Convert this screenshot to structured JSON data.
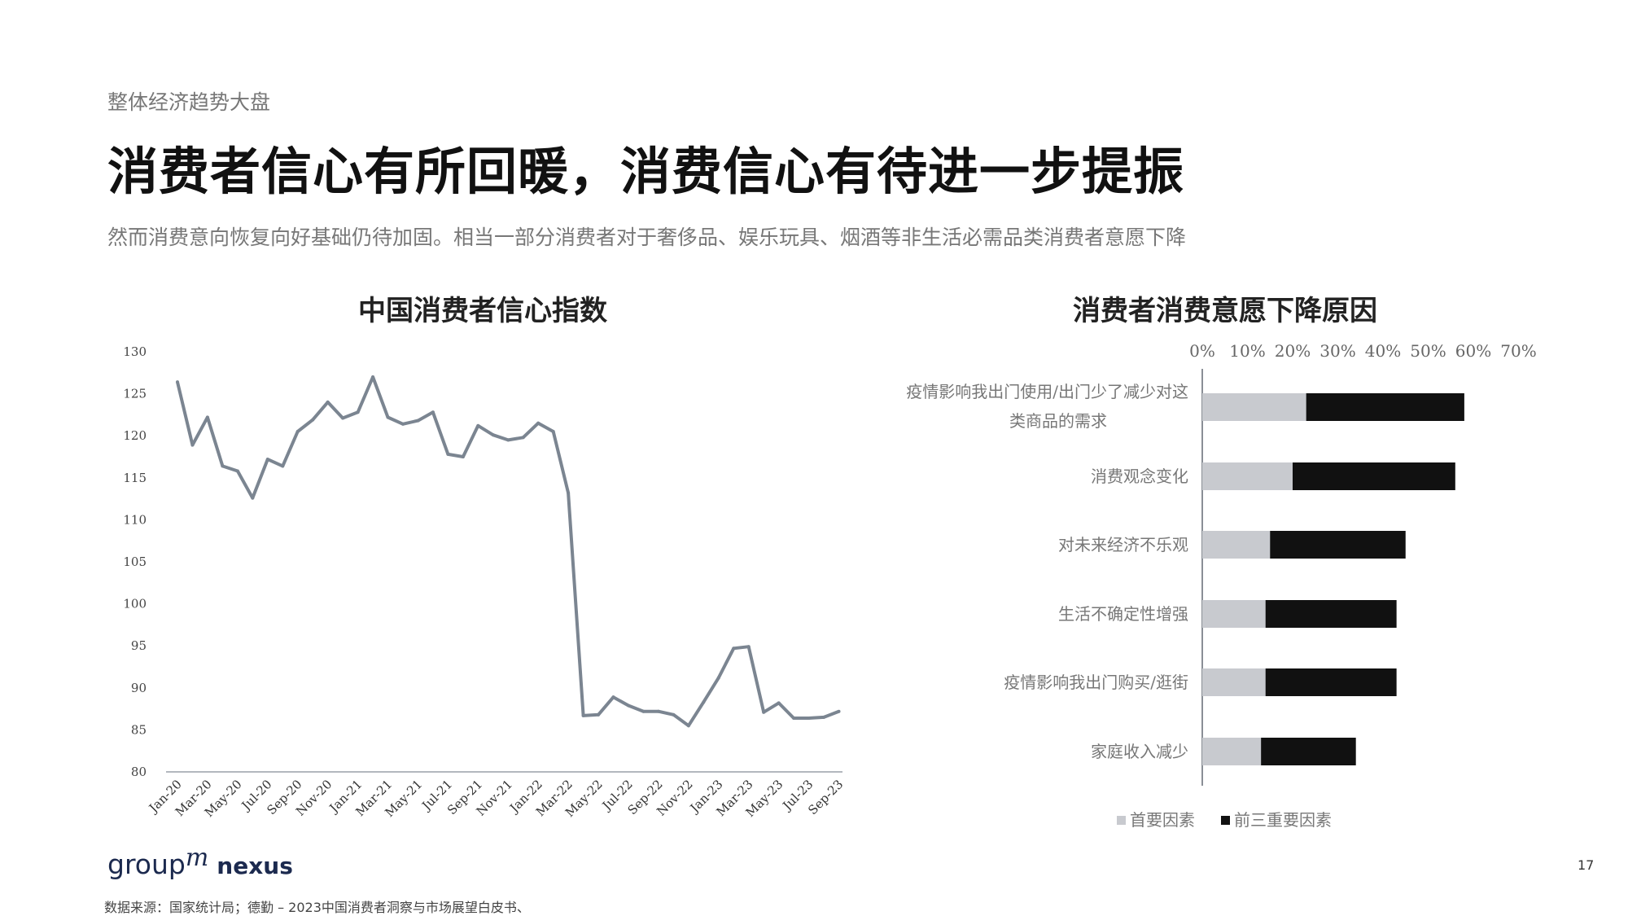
{
  "header": {
    "section_label": "整体经济趋势大盘",
    "title": "消费者信心有所回暖，消费信心有待进一步提振",
    "subtitle": "然而消费意向恢复向好基础仍待加固。相当一部分消费者对于奢侈品、娱乐玩具、烟酒等非生活必需品类消费者意愿下降"
  },
  "footer": {
    "logo_group": "group",
    "logo_m": "m",
    "logo_nexus": "nexus",
    "page_number": "17",
    "source": "数据来源：国家统计局；德勤 – 2023中国消费者洞察与市场展望白皮书、"
  },
  "chart_data": [
    {
      "type": "line",
      "title": "中国消费者信心指数",
      "xlabel": "",
      "ylabel": "",
      "ylim": [
        80,
        130
      ],
      "yticks": [
        80,
        85,
        90,
        95,
        100,
        105,
        110,
        115,
        120,
        125,
        130
      ],
      "xtick_labels": [
        "Jan-20",
        "Mar-20",
        "May-20",
        "Jul-20",
        "Sep-20",
        "Nov-20",
        "Jan-21",
        "Mar-21",
        "May-21",
        "Jul-21",
        "Sep-21",
        "Nov-21",
        "Jan-22",
        "Mar-22",
        "May-22",
        "Jul-22",
        "Sep-22",
        "Nov-22",
        "Jan-23",
        "Mar-23",
        "May-23",
        "Jul-23",
        "Sep-23"
      ],
      "x": [
        "Jan-20",
        "Feb-20",
        "Mar-20",
        "Apr-20",
        "May-20",
        "Jun-20",
        "Jul-20",
        "Aug-20",
        "Sep-20",
        "Oct-20",
        "Nov-20",
        "Dec-20",
        "Jan-21",
        "Feb-21",
        "Mar-21",
        "Apr-21",
        "May-21",
        "Jun-21",
        "Jul-21",
        "Aug-21",
        "Sep-21",
        "Oct-21",
        "Nov-21",
        "Dec-21",
        "Jan-22",
        "Feb-22",
        "Mar-22",
        "Apr-22",
        "May-22",
        "Jun-22",
        "Jul-22",
        "Aug-22",
        "Sep-22",
        "Oct-22",
        "Nov-22",
        "Dec-22",
        "Jan-23",
        "Feb-23",
        "Mar-23",
        "Apr-23",
        "May-23",
        "Jun-23",
        "Jul-23",
        "Aug-23",
        "Sep-23"
      ],
      "values": [
        126.4,
        118.9,
        122.2,
        116.4,
        115.8,
        112.6,
        117.2,
        116.4,
        120.5,
        121.9,
        124.0,
        122.1,
        122.8,
        127.0,
        122.2,
        121.4,
        121.8,
        122.8,
        117.8,
        117.5,
        121.2,
        120.1,
        119.5,
        119.8,
        121.5,
        120.5,
        113.2,
        86.7,
        86.8,
        88.9,
        87.9,
        87.2,
        87.2,
        86.8,
        85.5,
        88.3,
        91.2,
        94.7,
        94.9,
        87.1,
        88.2,
        86.4,
        86.4,
        86.5,
        87.2
      ],
      "color": "#7b8591",
      "grid": false
    },
    {
      "type": "bar",
      "orientation": "horizontal",
      "stacked": true,
      "title": "消费者消费意愿下降原因",
      "xlim": [
        0,
        70
      ],
      "xtick_labels": [
        "0%",
        "10%",
        "20%",
        "30%",
        "40%",
        "50%",
        "60%",
        "70%"
      ],
      "categories": [
        "疫情影响我出门使用/出门少了减少对这类商品的需求",
        "消费观念变化",
        "对未来经济不乐观",
        "生活不确定性增强",
        "疫情影响我出门购买/逛街",
        "家庭收入减少"
      ],
      "series": [
        {
          "name": "首要因素",
          "color": "#c8cacf",
          "values": [
            23,
            20,
            15,
            14,
            14,
            13
          ]
        },
        {
          "name": "前三重要因素",
          "color": "#111111",
          "values": [
            35,
            36,
            30,
            29,
            29,
            21
          ]
        }
      ],
      "legend_position": "bottom",
      "grid": false
    }
  ]
}
